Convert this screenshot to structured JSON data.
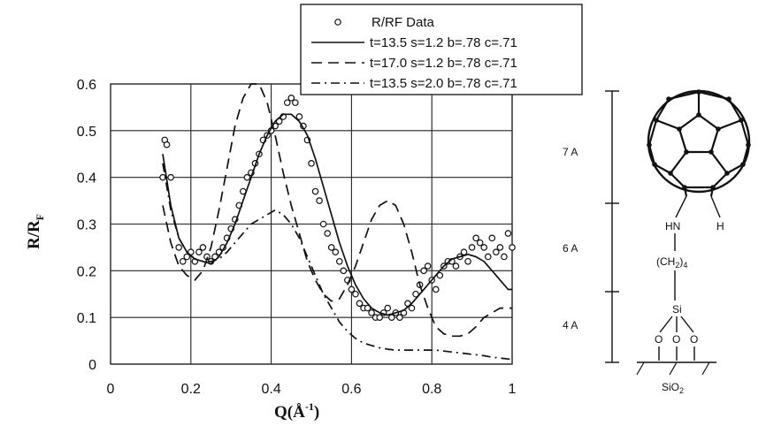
{
  "chart_data": {
    "type": "line",
    "title": "",
    "xlabel": "Q(Å",
    "xlabel_sup": "-1",
    "xlabel_close": ")",
    "ylabel": "R/R",
    "ylabel_sub": "F",
    "xlim": [
      0,
      1
    ],
    "ylim": [
      0,
      0.6
    ],
    "x_ticks": [
      "0",
      "0.2",
      "0.4",
      "0.6",
      "0.8",
      "1"
    ],
    "y_ticks": [
      "0",
      "0.1",
      "0.2",
      "0.3",
      "0.4",
      "0.5",
      "0.6"
    ],
    "grid": true,
    "legend_position": "top-right",
    "series": [
      {
        "name": "R/RF Data",
        "style": "circles",
        "x": [
          0.13,
          0.135,
          0.14,
          0.15,
          0.17,
          0.18,
          0.19,
          0.2,
          0.21,
          0.22,
          0.23,
          0.24,
          0.25,
          0.26,
          0.27,
          0.28,
          0.29,
          0.3,
          0.31,
          0.32,
          0.33,
          0.34,
          0.35,
          0.36,
          0.37,
          0.38,
          0.39,
          0.4,
          0.41,
          0.42,
          0.43,
          0.44,
          0.45,
          0.46,
          0.47,
          0.48,
          0.49,
          0.5,
          0.51,
          0.52,
          0.53,
          0.54,
          0.55,
          0.56,
          0.57,
          0.58,
          0.59,
          0.6,
          0.61,
          0.62,
          0.63,
          0.64,
          0.65,
          0.66,
          0.67,
          0.68,
          0.69,
          0.7,
          0.71,
          0.72,
          0.73,
          0.74,
          0.75,
          0.76,
          0.77,
          0.78,
          0.79,
          0.8,
          0.81,
          0.82,
          0.83,
          0.84,
          0.85,
          0.86,
          0.87,
          0.88,
          0.89,
          0.9,
          0.91,
          0.92,
          0.93,
          0.94,
          0.95,
          0.96,
          0.97,
          0.98,
          0.99,
          1.0
        ],
        "y": [
          0.4,
          0.48,
          0.47,
          0.4,
          0.25,
          0.22,
          0.23,
          0.24,
          0.22,
          0.24,
          0.25,
          0.23,
          0.22,
          0.23,
          0.24,
          0.25,
          0.27,
          0.29,
          0.31,
          0.34,
          0.37,
          0.4,
          0.41,
          0.43,
          0.45,
          0.48,
          0.49,
          0.5,
          0.51,
          0.52,
          0.53,
          0.56,
          0.57,
          0.56,
          0.53,
          0.51,
          0.48,
          0.43,
          0.37,
          0.35,
          0.3,
          0.28,
          0.25,
          0.24,
          0.22,
          0.2,
          0.18,
          0.16,
          0.15,
          0.13,
          0.12,
          0.12,
          0.11,
          0.1,
          0.1,
          0.11,
          0.12,
          0.1,
          0.11,
          0.1,
          0.11,
          0.13,
          0.12,
          0.15,
          0.17,
          0.2,
          0.21,
          0.18,
          0.16,
          0.19,
          0.21,
          0.22,
          0.22,
          0.21,
          0.23,
          0.24,
          0.22,
          0.25,
          0.27,
          0.26,
          0.25,
          0.23,
          0.27,
          0.24,
          0.25,
          0.23,
          0.28,
          0.25
        ]
      },
      {
        "name": "t=13.5 s=1.2 b=.78 c=.71",
        "style": "solid",
        "x": [
          0.13,
          0.15,
          0.17,
          0.19,
          0.21,
          0.23,
          0.25,
          0.27,
          0.29,
          0.31,
          0.33,
          0.35,
          0.37,
          0.39,
          0.41,
          0.43,
          0.45,
          0.47,
          0.49,
          0.51,
          0.53,
          0.55,
          0.57,
          0.59,
          0.61,
          0.63,
          0.65,
          0.67,
          0.69,
          0.71,
          0.73,
          0.75,
          0.77,
          0.79,
          0.81,
          0.83,
          0.85,
          0.87,
          0.89,
          0.91,
          0.93,
          0.95,
          0.97,
          0.99,
          1.0
        ],
        "y": [
          0.45,
          0.34,
          0.27,
          0.24,
          0.225,
          0.22,
          0.215,
          0.23,
          0.26,
          0.3,
          0.35,
          0.4,
          0.45,
          0.49,
          0.52,
          0.535,
          0.535,
          0.52,
          0.49,
          0.44,
          0.38,
          0.32,
          0.26,
          0.21,
          0.17,
          0.14,
          0.12,
          0.11,
          0.105,
          0.11,
          0.115,
          0.13,
          0.15,
          0.17,
          0.19,
          0.21,
          0.225,
          0.23,
          0.235,
          0.23,
          0.22,
          0.2,
          0.18,
          0.16,
          0.16
        ]
      },
      {
        "name": "t=17.0 s=1.2 b=.78 c=.71",
        "style": "dashed",
        "x": [
          0.13,
          0.15,
          0.17,
          0.19,
          0.21,
          0.23,
          0.25,
          0.27,
          0.29,
          0.31,
          0.33,
          0.35,
          0.37,
          0.39,
          0.41,
          0.43,
          0.45,
          0.47,
          0.49,
          0.51,
          0.53,
          0.55,
          0.57,
          0.59,
          0.61,
          0.63,
          0.65,
          0.67,
          0.69,
          0.71,
          0.73,
          0.75,
          0.77,
          0.79,
          0.81,
          0.83,
          0.85,
          0.87,
          0.89,
          0.91,
          0.93,
          0.95,
          0.97,
          0.99,
          1.0
        ],
        "y": [
          0.34,
          0.26,
          0.21,
          0.19,
          0.18,
          0.2,
          0.25,
          0.33,
          0.42,
          0.51,
          0.57,
          0.6,
          0.6,
          0.56,
          0.49,
          0.41,
          0.34,
          0.28,
          0.22,
          0.18,
          0.15,
          0.135,
          0.14,
          0.17,
          0.21,
          0.26,
          0.31,
          0.34,
          0.35,
          0.34,
          0.3,
          0.24,
          0.17,
          0.12,
          0.08,
          0.065,
          0.06,
          0.06,
          0.065,
          0.08,
          0.1,
          0.11,
          0.12,
          0.12,
          0.12
        ]
      },
      {
        "name": "t=13.5 s=2.0 b=.78 c=.71",
        "style": "dash-dot",
        "x": [
          0.13,
          0.15,
          0.17,
          0.19,
          0.21,
          0.23,
          0.25,
          0.27,
          0.29,
          0.31,
          0.33,
          0.35,
          0.37,
          0.39,
          0.41,
          0.43,
          0.45,
          0.47,
          0.49,
          0.51,
          0.53,
          0.55,
          0.57,
          0.59,
          0.61,
          0.63,
          0.65,
          0.67,
          0.69,
          0.71,
          0.73,
          0.75,
          0.77,
          0.79,
          0.81,
          0.83,
          0.85,
          0.87,
          0.89,
          0.91,
          0.93,
          0.95,
          0.97,
          0.99,
          1.0
        ],
        "y": [
          0.43,
          0.33,
          0.27,
          0.24,
          0.225,
          0.22,
          0.22,
          0.225,
          0.24,
          0.26,
          0.28,
          0.3,
          0.31,
          0.32,
          0.33,
          0.32,
          0.3,
          0.27,
          0.23,
          0.19,
          0.15,
          0.12,
          0.09,
          0.07,
          0.055,
          0.045,
          0.04,
          0.035,
          0.032,
          0.03,
          0.03,
          0.03,
          0.03,
          0.03,
          0.03,
          0.028,
          0.026,
          0.024,
          0.022,
          0.02,
          0.018,
          0.015,
          0.013,
          0.011,
          0.01
        ]
      }
    ]
  },
  "molecule": {
    "dimension_labels": [
      "7 A",
      "6 A",
      "4 A"
    ],
    "hn_label": "HN",
    "h_label": "H",
    "chain_label": "(CH",
    "chain_sub": "2",
    "chain_close": ")",
    "chain_count": "4",
    "si_label": "Si",
    "o_labels": [
      "O",
      "O",
      "O"
    ],
    "substrate_label": "SiO",
    "substrate_sub": "2"
  }
}
